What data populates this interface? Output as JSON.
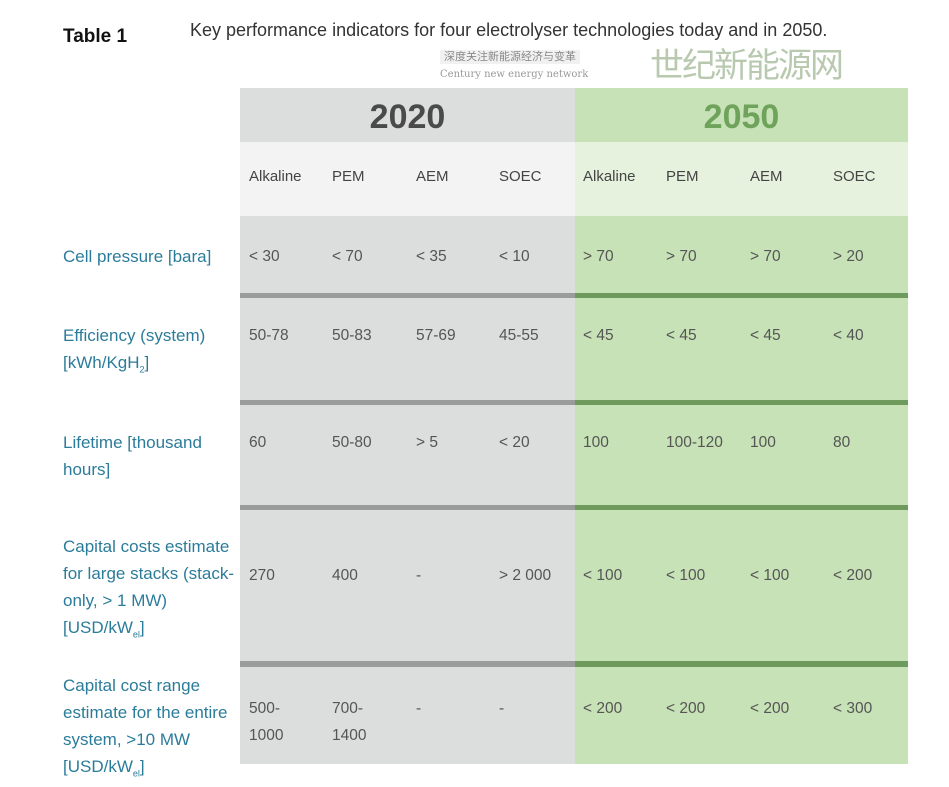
{
  "table_label": "Table 1",
  "caption": "Key performance indicators for four electrolyser technologies today and in 2050.",
  "years": [
    "2020",
    "2050"
  ],
  "technologies": [
    "Alkaline",
    "PEM",
    "AEM",
    "SOEC",
    "Alkaline",
    "PEM",
    "AEM",
    "SOEC"
  ],
  "rows": [
    {
      "label": "Cell pressure [bara]",
      "values": [
        "< 30",
        "< 70",
        "< 35",
        "< 10",
        "> 70",
        "> 70",
        "> 70",
        "> 20"
      ]
    },
    {
      "label": "Efficiency (system) [kWh/KgH",
      "label_sub": "2",
      "label_end": "]",
      "values": [
        "50-78",
        "50-83",
        "57-69",
        "45-55",
        "< 45",
        "< 45",
        "< 45",
        "< 40"
      ]
    },
    {
      "label": "Lifetime [thousand hours]",
      "values": [
        "60",
        "50-80",
        "> 5",
        "< 20",
        "100",
        "100-120",
        "100",
        "80"
      ]
    },
    {
      "label": "Capital costs estimate for large stacks (stack-only, > 1 MW) [USD/kW",
      "label_sub": "el",
      "label_end": "]",
      "values": [
        "270",
        "400",
        "-",
        "> 2 000",
        "< 100",
        "< 100",
        "< 100",
        "< 200"
      ]
    },
    {
      "label": "Capital cost range estimate for the entire system, >10 MW [USD/kW",
      "label_sub": "el",
      "label_end": "]",
      "values": [
        "500-\n1000",
        "700-\n1400",
        "-",
        "-",
        "< 200",
        "< 200",
        "< 200",
        "< 300"
      ]
    }
  ],
  "watermark": {
    "top": "深度关注新能源经济与变革",
    "main": "世纪新能源网",
    "sub": "Century new energy network"
  },
  "colors": {
    "label": "#2b7c9a",
    "band2020": "#dcdddd",
    "band2050": "#c7e2b6"
  }
}
